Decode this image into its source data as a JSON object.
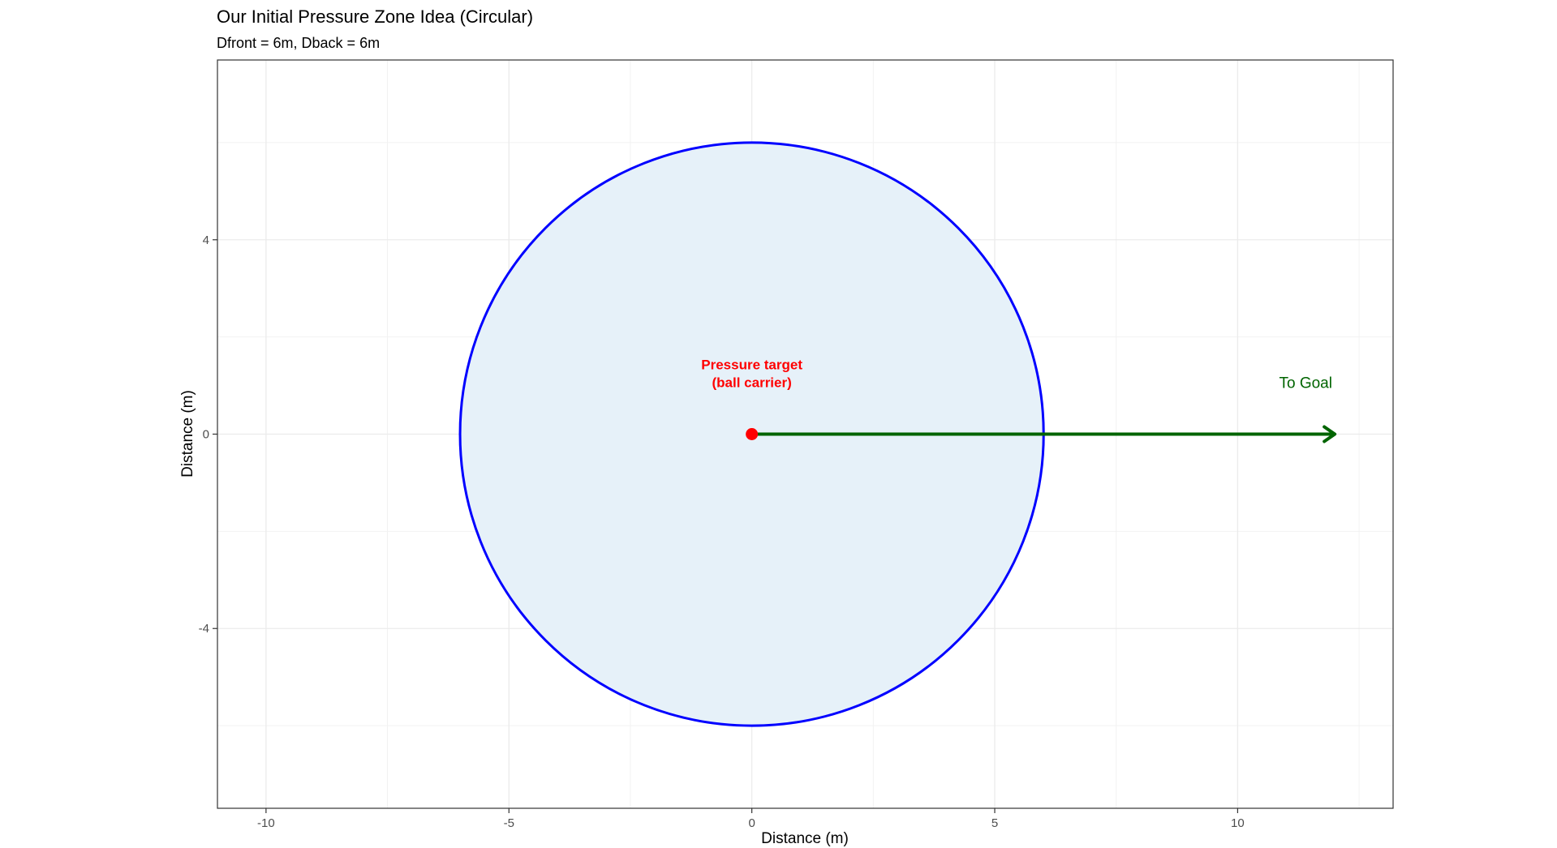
{
  "chart_data": {
    "type": "scatter",
    "title": "Our Initial Pressure Zone Idea (Circular)",
    "subtitle": "Dfront = 6m, Dback = 6m",
    "xlabel": "Distance (m)",
    "ylabel": "Distance (m)",
    "xlim": [
      -11,
      13.2
    ],
    "ylim": [
      -7.7,
      7.7
    ],
    "x_ticks": [
      -10,
      -5,
      0,
      5,
      10
    ],
    "x_tick_labels": [
      "-10",
      "-5",
      "0",
      "5",
      "10"
    ],
    "y_ticks": [
      -4,
      0,
      4
    ],
    "y_tick_labels": [
      "-4",
      "0",
      "4"
    ],
    "x_minor_ticks": [
      -7.5,
      -2.5,
      2.5,
      7.5,
      12.5
    ],
    "y_minor_ticks": [
      -6,
      -2,
      2,
      6
    ],
    "grid": true,
    "zone": {
      "shape": "circle",
      "center": [
        0,
        0
      ],
      "radius": 6,
      "fill_color": "#e6f1f9",
      "stroke_color": "#0000ff"
    },
    "points": [
      {
        "x": 0,
        "y": 0,
        "color": "#ff0000"
      }
    ],
    "arrow": {
      "from": [
        0,
        0
      ],
      "to": [
        12,
        0
      ],
      "color": "#006400"
    },
    "annotations": [
      {
        "x": 0,
        "y": 1.15,
        "lines": [
          "Pressure target",
          "(ball carrier)"
        ],
        "color": "#ff0000",
        "bold": true
      },
      {
        "x": 11.4,
        "y": 0.95,
        "lines": [
          "To Goal"
        ],
        "color": "#006400",
        "bold": false
      }
    ]
  }
}
